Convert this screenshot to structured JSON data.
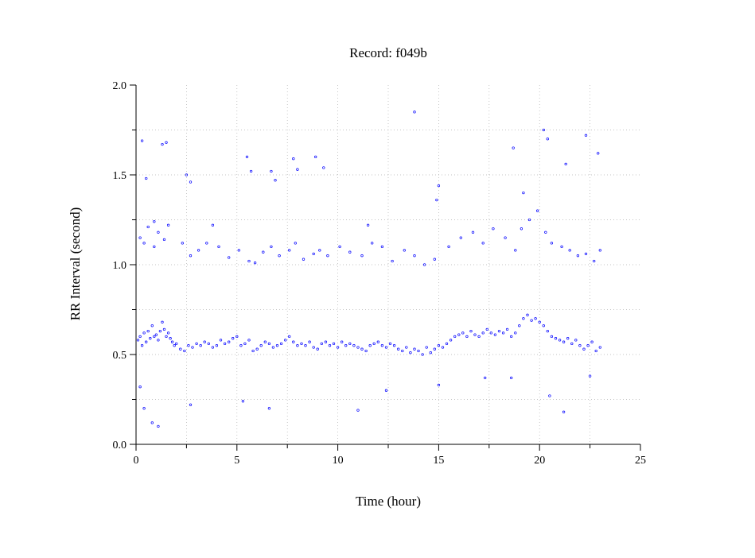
{
  "chart_data": {
    "type": "scatter",
    "title": "Record:  f049b",
    "xlabel": "Time (hour)",
    "ylabel": "RR Interval (second)",
    "xlim": [
      0,
      25
    ],
    "ylim": [
      0,
      2
    ],
    "x_ticks": [
      0,
      5,
      10,
      15,
      20,
      25
    ],
    "x_tick_labels": [
      "0",
      "5",
      "10",
      "15",
      "20",
      "25"
    ],
    "y_ticks": [
      0,
      0.5,
      1,
      1.5,
      2
    ],
    "y_tick_labels": [
      "0.0",
      "0.5",
      "1.0",
      "1.5",
      "2.0"
    ],
    "grid": true,
    "marker_color": "#0000ff",
    "series": [
      {
        "x": [
          0.1,
          0.2,
          0.3,
          0.4,
          0.5,
          0.6,
          0.7,
          0.8,
          0.9,
          1.0,
          1.1,
          1.2,
          1.3,
          1.4,
          1.5,
          1.6,
          1.7,
          1.8,
          1.9,
          2.0,
          2.2,
          2.4,
          2.6,
          2.8,
          3.0,
          3.2,
          3.4,
          3.6,
          3.8,
          4.0,
          4.2,
          4.4,
          4.6,
          4.8,
          5.0,
          5.2,
          5.4,
          5.6,
          5.8,
          6.0,
          6.2,
          6.4,
          6.6,
          6.8,
          7.0,
          7.2,
          7.4,
          7.6,
          7.8,
          8.0,
          8.2,
          8.4,
          8.6,
          8.8,
          9.0,
          9.2,
          9.4,
          9.6,
          9.8,
          10.0,
          10.2,
          10.4,
          10.6,
          10.8,
          11.0,
          11.2,
          11.4,
          11.6,
          11.8,
          12.0,
          12.2,
          12.4,
          12.6,
          12.8,
          13.0,
          13.2,
          13.4,
          13.6,
          13.8,
          14.0,
          14.2,
          14.4,
          14.6,
          14.8,
          15.0,
          15.2,
          15.4,
          15.6,
          15.8,
          16.0,
          16.2,
          16.4,
          16.6,
          16.8,
          17.0,
          17.2,
          17.4,
          17.6,
          17.8,
          18.0,
          18.2,
          18.4,
          18.6,
          18.8,
          19.0,
          19.2,
          19.4,
          19.6,
          19.8,
          20.0,
          20.2,
          20.4,
          20.6,
          20.8,
          21.0,
          21.2,
          21.4,
          21.6,
          21.8,
          22.0,
          22.2,
          22.4,
          22.6,
          22.8,
          23.0,
          0.2,
          0.4,
          0.6,
          0.9,
          1.1,
          1.4,
          1.6,
          2.3,
          2.7,
          3.1,
          3.5,
          4.1,
          4.6,
          5.1,
          5.6,
          5.9,
          6.3,
          6.7,
          7.1,
          7.6,
          7.9,
          8.3,
          8.8,
          9.1,
          9.5,
          10.1,
          10.6,
          11.2,
          11.7,
          12.2,
          12.7,
          13.3,
          13.8,
          14.3,
          14.8,
          15.5,
          16.1,
          16.7,
          17.2,
          17.7,
          18.3,
          18.8,
          19.1,
          19.5,
          19.9,
          20.3,
          20.6,
          21.1,
          21.5,
          21.9,
          22.3,
          22.7,
          23.0,
          0.3,
          0.5,
          0.9,
          1.3,
          1.5,
          2.5,
          2.7,
          3.8,
          5.5,
          5.7,
          6.7,
          6.9,
          7.8,
          8.0,
          8.9,
          9.3,
          11.5,
          13.8,
          14.9,
          15.0,
          18.7,
          19.2,
          20.2,
          20.4,
          21.3,
          22.3,
          22.9,
          0.2,
          0.4,
          0.8,
          1.1,
          2.7,
          5.3,
          6.6,
          11.0,
          12.4,
          15.0,
          17.3,
          18.6,
          20.5,
          21.2,
          22.5
        ],
        "y": [
          0.58,
          0.6,
          0.55,
          0.62,
          0.57,
          0.63,
          0.59,
          0.66,
          0.6,
          0.61,
          0.58,
          0.63,
          0.68,
          0.64,
          0.6,
          0.62,
          0.59,
          0.57,
          0.55,
          0.56,
          0.53,
          0.52,
          0.55,
          0.54,
          0.56,
          0.55,
          0.57,
          0.56,
          0.54,
          0.55,
          0.58,
          0.56,
          0.57,
          0.59,
          0.6,
          0.55,
          0.56,
          0.58,
          0.52,
          0.53,
          0.55,
          0.57,
          0.56,
          0.54,
          0.55,
          0.56,
          0.58,
          0.6,
          0.57,
          0.55,
          0.56,
          0.55,
          0.57,
          0.54,
          0.53,
          0.56,
          0.57,
          0.55,
          0.56,
          0.54,
          0.57,
          0.55,
          0.56,
          0.55,
          0.54,
          0.53,
          0.52,
          0.55,
          0.56,
          0.57,
          0.55,
          0.54,
          0.56,
          0.55,
          0.53,
          0.52,
          0.54,
          0.51,
          0.53,
          0.52,
          0.5,
          0.54,
          0.51,
          0.53,
          0.55,
          0.54,
          0.56,
          0.58,
          0.6,
          0.61,
          0.62,
          0.6,
          0.63,
          0.61,
          0.6,
          0.62,
          0.64,
          0.62,
          0.61,
          0.63,
          0.62,
          0.64,
          0.6,
          0.62,
          0.66,
          0.7,
          0.72,
          0.69,
          0.7,
          0.68,
          0.66,
          0.63,
          0.6,
          0.59,
          0.58,
          0.57,
          0.59,
          0.56,
          0.58,
          0.55,
          0.53,
          0.55,
          0.57,
          0.52,
          0.54,
          1.15,
          1.12,
          1.21,
          1.1,
          1.18,
          1.14,
          1.22,
          1.12,
          1.05,
          1.08,
          1.12,
          1.1,
          1.04,
          1.08,
          1.02,
          1.01,
          1.07,
          1.1,
          1.05,
          1.08,
          1.12,
          1.03,
          1.06,
          1.08,
          1.05,
          1.1,
          1.07,
          1.05,
          1.12,
          1.1,
          1.02,
          1.08,
          1.05,
          1.0,
          1.03,
          1.1,
          1.15,
          1.18,
          1.12,
          1.2,
          1.15,
          1.08,
          1.2,
          1.25,
          1.3,
          1.18,
          1.12,
          1.1,
          1.08,
          1.05,
          1.06,
          1.02,
          1.08,
          1.69,
          1.48,
          1.24,
          1.67,
          1.68,
          1.5,
          1.46,
          1.22,
          1.6,
          1.52,
          1.52,
          1.47,
          1.59,
          1.53,
          1.6,
          1.54,
          1.22,
          1.85,
          1.36,
          1.44,
          1.65,
          1.4,
          1.75,
          1.7,
          1.56,
          1.72,
          1.62,
          0.32,
          0.2,
          0.12,
          0.1,
          0.22,
          0.24,
          0.2,
          0.19,
          0.3,
          0.33,
          0.37,
          0.37,
          0.27,
          0.18,
          0.38
        ]
      }
    ]
  }
}
